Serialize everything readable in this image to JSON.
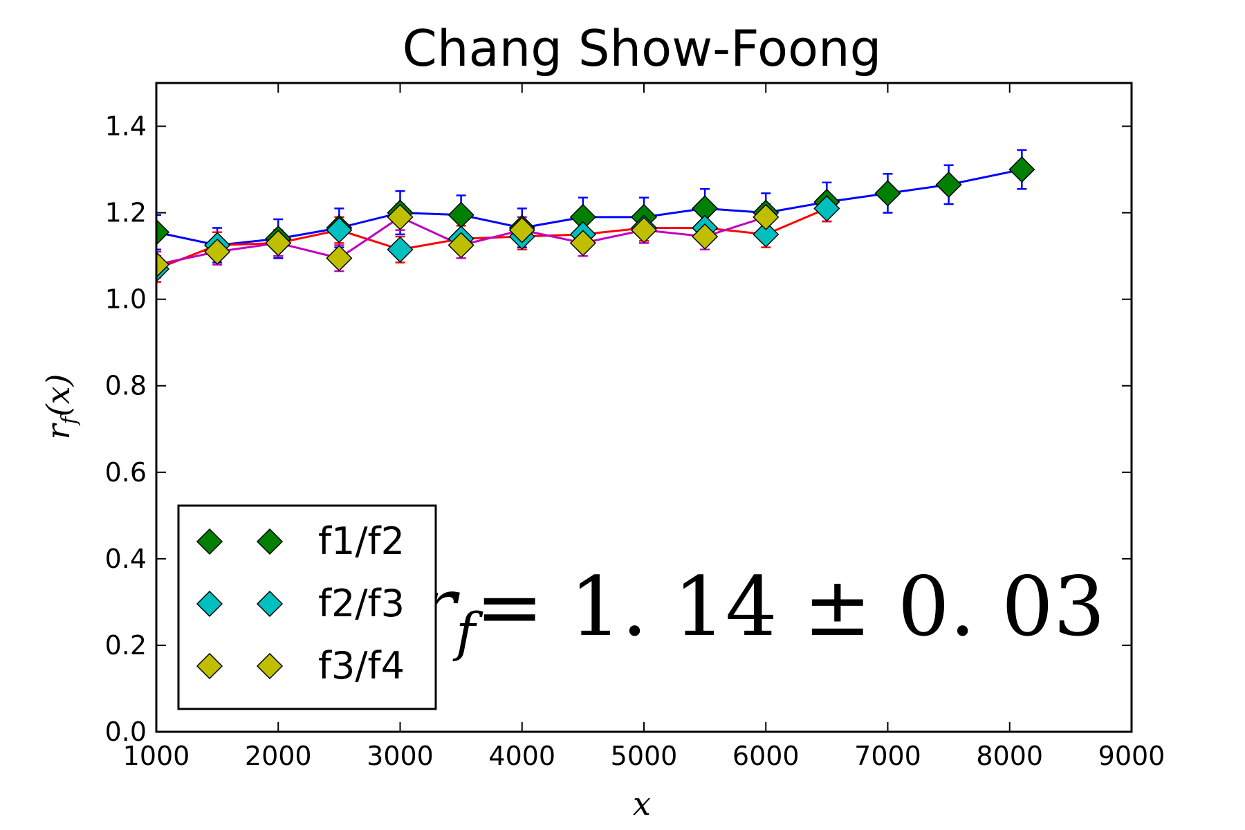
{
  "chart_data": {
    "type": "line",
    "title": "Chang Show-Foong",
    "xlabel": "x",
    "ylabel": "r_f(x)",
    "xlim": [
      1000,
      9000
    ],
    "ylim": [
      0.0,
      1.5
    ],
    "xticks": [
      1000,
      2000,
      3000,
      4000,
      5000,
      6000,
      7000,
      8000,
      9000
    ],
    "yticks": [
      0.0,
      0.2,
      0.4,
      0.6,
      0.8,
      1.0,
      1.2,
      1.4
    ],
    "grid": false,
    "legend_position": "lower-left",
    "annotation": {
      "lhs": "r",
      "sub": "f",
      "rhs": "= 1. 14 ± 0. 03"
    },
    "series": [
      {
        "name": "f1/f2",
        "marker_color": "#008000",
        "line_color": "#0000ff",
        "x": [
          1000,
          1500,
          2000,
          2500,
          3000,
          3500,
          4000,
          4500,
          5000,
          5500,
          6000,
          6500,
          7000,
          7500,
          8100
        ],
        "y": [
          1.155,
          1.125,
          1.14,
          1.165,
          1.2,
          1.195,
          1.165,
          1.19,
          1.19,
          1.21,
          1.2,
          1.225,
          1.245,
          1.265,
          1.3
        ],
        "err": [
          0.04,
          0.04,
          0.045,
          0.045,
          0.05,
          0.045,
          0.045,
          0.045,
          0.045,
          0.045,
          0.045,
          0.045,
          0.045,
          0.045,
          0.045
        ]
      },
      {
        "name": "f2/f3",
        "marker_color": "#00bfbf",
        "line_color": "#ff0000",
        "x": [
          1000,
          1500,
          2000,
          2500,
          3000,
          3500,
          4000,
          4500,
          5000,
          5500,
          6000,
          6500
        ],
        "y": [
          1.07,
          1.125,
          1.13,
          1.16,
          1.115,
          1.14,
          1.145,
          1.15,
          1.165,
          1.165,
          1.15,
          1.21
        ],
        "err": [
          0.03,
          0.03,
          0.03,
          0.03,
          0.03,
          0.03,
          0.03,
          0.03,
          0.03,
          0.03,
          0.03,
          0.03
        ]
      },
      {
        "name": "f3/f4",
        "marker_color": "#bfbf00",
        "line_color": "#bf00bf",
        "x": [
          1000,
          1500,
          2000,
          2500,
          3000,
          3500,
          4000,
          4500,
          5000,
          5500,
          6000
        ],
        "y": [
          1.08,
          1.11,
          1.13,
          1.095,
          1.19,
          1.125,
          1.16,
          1.13,
          1.16,
          1.145,
          1.19
        ],
        "err": [
          0.03,
          0.03,
          0.03,
          0.03,
          0.03,
          0.03,
          0.03,
          0.03,
          0.03,
          0.03,
          0.03
        ]
      }
    ]
  }
}
